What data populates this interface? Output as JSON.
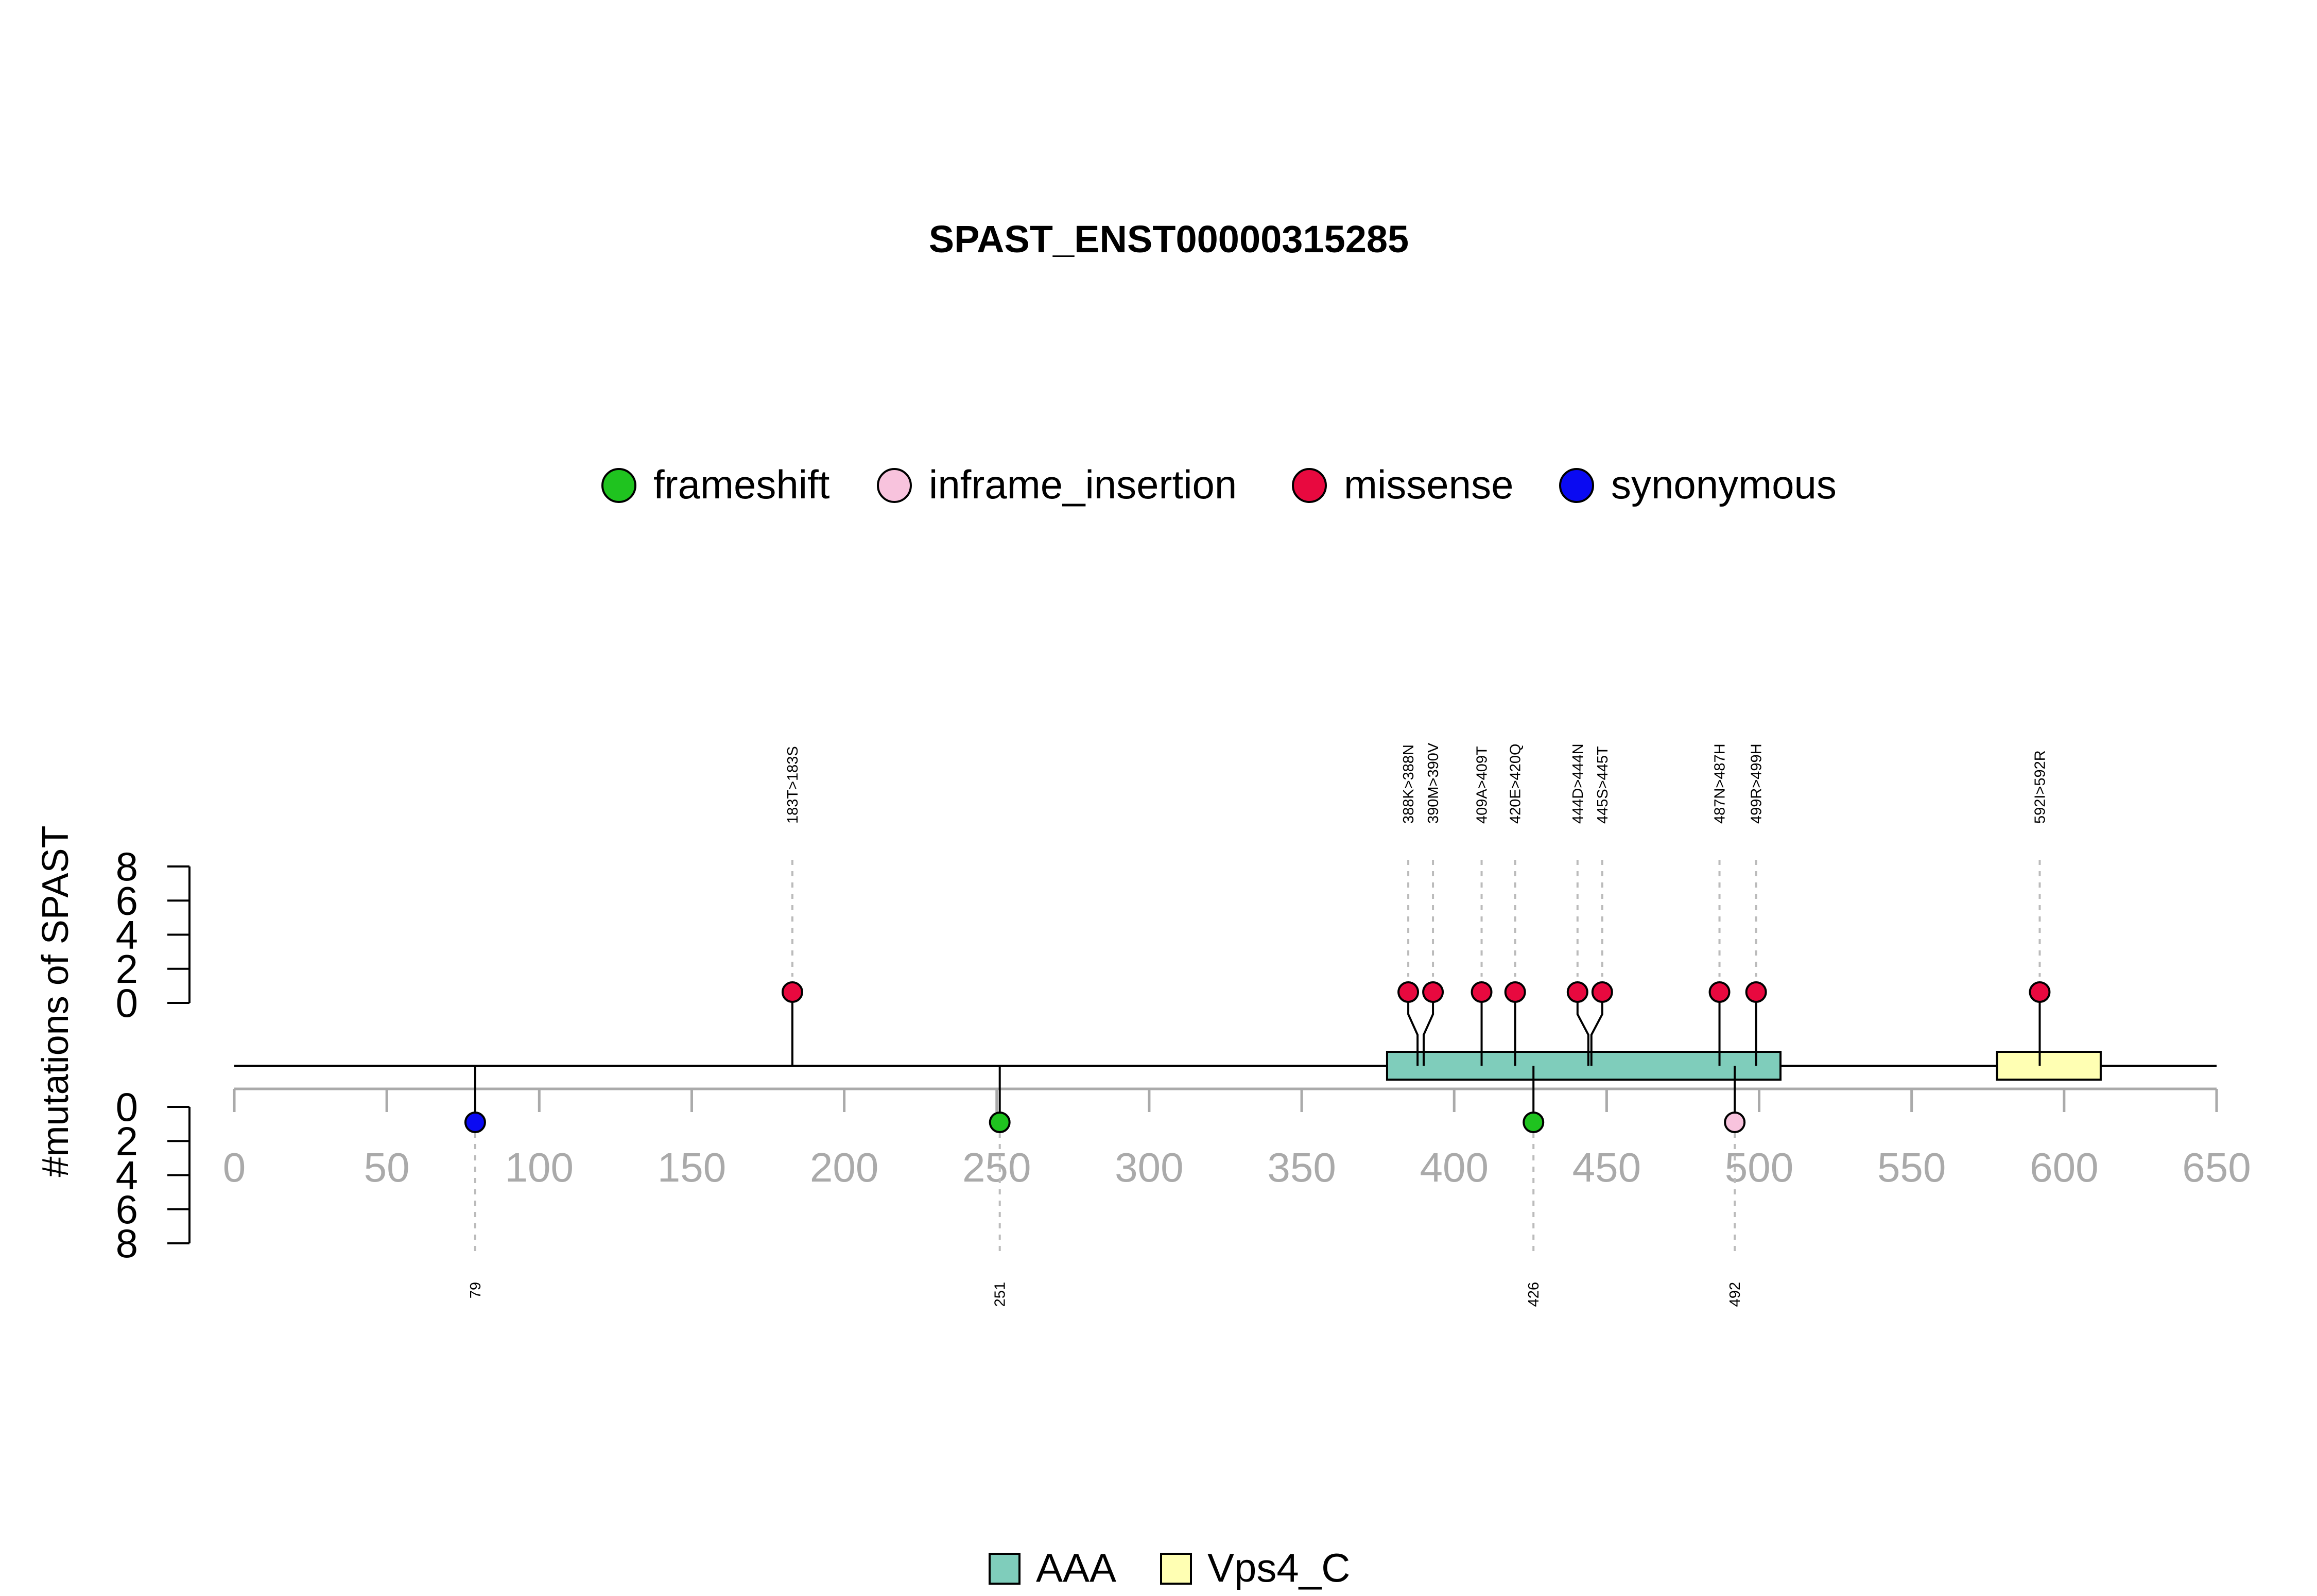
{
  "chart_data": {
    "type": "lollipop",
    "title": "SPAST_ENST00000315285",
    "ylabel": "#mutations of SPAST",
    "xlim": [
      0,
      650
    ],
    "x_ticks": [
      0,
      50,
      100,
      150,
      200,
      250,
      300,
      350,
      400,
      450,
      500,
      550,
      600,
      650
    ],
    "y_ticks": [
      0,
      2,
      4,
      6,
      8
    ],
    "ylim": [
      0,
      8
    ],
    "legend": {
      "position": "top",
      "entries": [
        {
          "name": "frameshift",
          "color": "#1fc31f"
        },
        {
          "name": "inframe_insertion",
          "color": "#f8c3dd"
        },
        {
          "name": "missense",
          "color": "#e8093f"
        },
        {
          "name": "synonymous",
          "color": "#0a0af2"
        }
      ]
    },
    "domains": [
      {
        "name": "AAA",
        "start": 378,
        "end": 507,
        "color": "#7fcdbb"
      },
      {
        "name": "Vps4_C",
        "start": 578,
        "end": 612,
        "color": "#ffffb3"
      }
    ],
    "domain_legend_position": "bottom",
    "mutations_top": [
      {
        "pos": 183,
        "label": "183T>183S",
        "type": "missense",
        "count": 1
      },
      {
        "pos": 388,
        "label": "388K>388N",
        "type": "missense",
        "count": 1
      },
      {
        "pos": 390,
        "label": "390M>390V",
        "type": "missense",
        "count": 1
      },
      {
        "pos": 409,
        "label": "409A>409T",
        "type": "missense",
        "count": 1
      },
      {
        "pos": 420,
        "label": "420E>420Q",
        "type": "missense",
        "count": 1
      },
      {
        "pos": 444,
        "label": "444D>444N",
        "type": "missense",
        "count": 1
      },
      {
        "pos": 445,
        "label": "445S>445T",
        "type": "missense",
        "count": 1
      },
      {
        "pos": 487,
        "label": "487N>487H",
        "type": "missense",
        "count": 1
      },
      {
        "pos": 499,
        "label": "499R>499H",
        "type": "missense",
        "count": 1
      },
      {
        "pos": 592,
        "label": "592I>592R",
        "type": "missense",
        "count": 1
      }
    ],
    "mutations_bottom": [
      {
        "pos": 79,
        "label": "79",
        "type": "synonymous",
        "count": 1
      },
      {
        "pos": 251,
        "label": "251",
        "type": "frameshift",
        "count": 1
      },
      {
        "pos": 426,
        "label": "426",
        "type": "frameshift",
        "count": 1
      },
      {
        "pos": 492,
        "label": "492",
        "type": "inframe_insertion",
        "count": 1
      }
    ]
  }
}
